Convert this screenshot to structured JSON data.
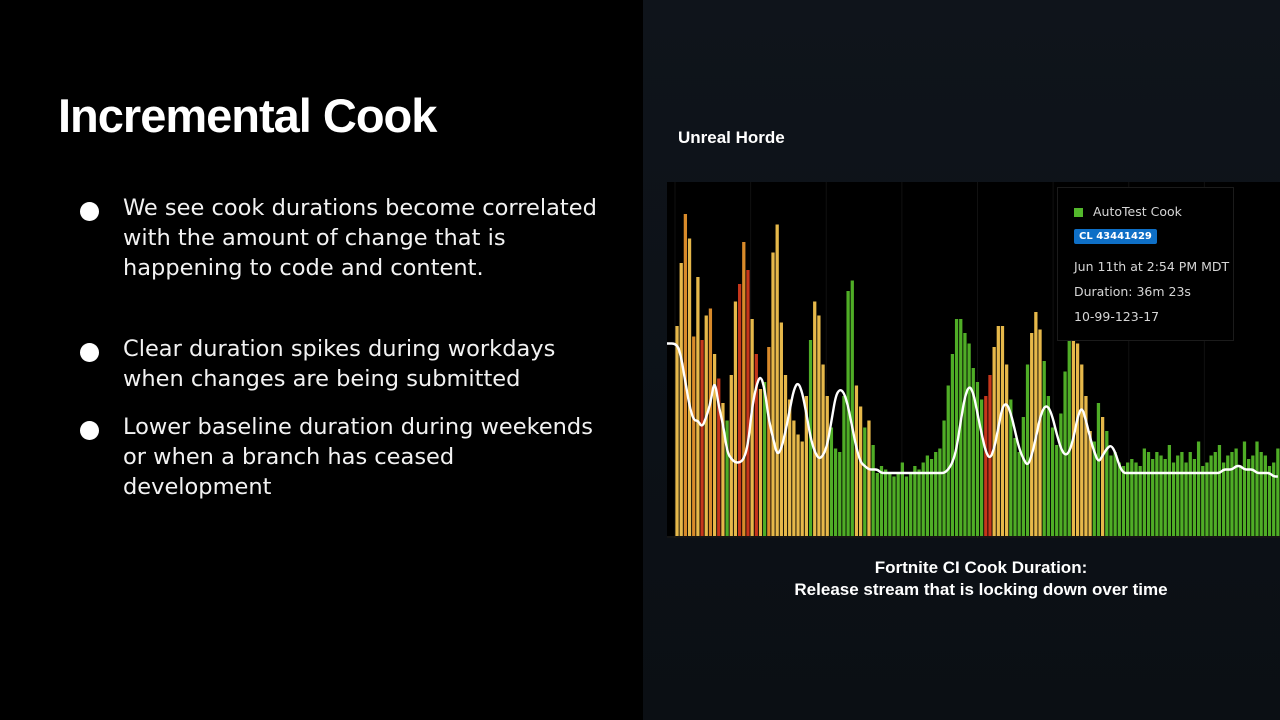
{
  "slide": {
    "title": "Incremental Cook",
    "bullets": [
      "We see cook durations become correlated with the amount of change that is happening to code and content.",
      "Clear duration spikes during workdays when changes are being submitted",
      "Lower baseline duration during weekends or when a branch has ceased development"
    ],
    "chart_heading": "Unreal Horde",
    "caption_line1": "Fortnite CI Cook Duration:",
    "caption_line2": "Release stream that is locking down over time"
  },
  "tooltip": {
    "series": "AutoTest Cook",
    "changelist": "CL 43441429",
    "time": "Jun 11th at 2:54 PM MDT",
    "duration": "Duration: 36m 23s",
    "build_id": "10-99-123-17"
  },
  "chart_data": {
    "type": "bar",
    "series": [
      {
        "name": "AutoTest Cook",
        "color": "#53b82c"
      }
    ],
    "color_scale": {
      "green": "#4fad26",
      "yellow": "#e6b84a",
      "orange": "#d88a2a",
      "red": "#c5361b"
    },
    "trend_color": "#ffffff",
    "ylim": [
      0,
      100
    ],
    "values": [
      60,
      78,
      92,
      85,
      57,
      74,
      56,
      63,
      65,
      52,
      45,
      38,
      33,
      46,
      67,
      72,
      84,
      76,
      62,
      52,
      42,
      44,
      54,
      81,
      89,
      61,
      46,
      39,
      33,
      29,
      27,
      40,
      56,
      67,
      63,
      49,
      40,
      31,
      25,
      24,
      40,
      70,
      73,
      43,
      37,
      31,
      33,
      26,
      18,
      20,
      19,
      18,
      17,
      18,
      21,
      17,
      18,
      20,
      19,
      21,
      23,
      22,
      24,
      25,
      33,
      43,
      52,
      62,
      62,
      58,
      55,
      48,
      44,
      39,
      40,
      46,
      54,
      60,
      60,
      49,
      39,
      28,
      24,
      34,
      49,
      58,
      64,
      59,
      50,
      40,
      31,
      26,
      35,
      47,
      58,
      59,
      55,
      49,
      40,
      30,
      27,
      38,
      34,
      30,
      23,
      24,
      21,
      20,
      21,
      22,
      21,
      20,
      25,
      24,
      22,
      24,
      23,
      22,
      26,
      21,
      23,
      24,
      21,
      24,
      22,
      27,
      20,
      21,
      23,
      24,
      26,
      21,
      23,
      24,
      25,
      20,
      27,
      22,
      23,
      27,
      24,
      23,
      20,
      21,
      25
    ],
    "colors": [
      "y",
      "y",
      "o",
      "y",
      "o",
      "y",
      "r",
      "y",
      "o",
      "y",
      "r",
      "y",
      "g",
      "y",
      "y",
      "r",
      "o",
      "r",
      "y",
      "r",
      "y",
      "g",
      "o",
      "y",
      "y",
      "y",
      "y",
      "y",
      "y",
      "y",
      "y",
      "y",
      "g",
      "y",
      "y",
      "y",
      "y",
      "g",
      "g",
      "g",
      "g",
      "g",
      "g",
      "y",
      "y",
      "g",
      "y",
      "g",
      "g",
      "g",
      "g",
      "g",
      "g",
      "g",
      "g",
      "g",
      "g",
      "g",
      "g",
      "g",
      "g",
      "g",
      "g",
      "g",
      "g",
      "g",
      "g",
      "g",
      "g",
      "g",
      "g",
      "g",
      "g",
      "g",
      "r",
      "r",
      "y",
      "y",
      "y",
      "y",
      "g",
      "g",
      "g",
      "g",
      "g",
      "y",
      "y",
      "y",
      "g",
      "g",
      "g",
      "g",
      "g",
      "g",
      "g",
      "y",
      "y",
      "y",
      "y",
      "y",
      "g",
      "g",
      "y",
      "g",
      "g",
      "g",
      "g",
      "g",
      "g",
      "g",
      "g",
      "g",
      "g",
      "g",
      "g",
      "g",
      "g",
      "g",
      "g",
      "g",
      "g",
      "g",
      "g",
      "g",
      "g",
      "g",
      "g",
      "g",
      "g",
      "g",
      "g",
      "g",
      "g",
      "g",
      "g",
      "g",
      "g",
      "g",
      "g",
      "g",
      "g",
      "g",
      "g",
      "g",
      "g"
    ],
    "trend": [
      55,
      51,
      44,
      37,
      33,
      33,
      31,
      34,
      38,
      45,
      37,
      32,
      24,
      22,
      21,
      21,
      22,
      26,
      37,
      43,
      46,
      42,
      33,
      28,
      23,
      25,
      30,
      36,
      42,
      44,
      41,
      35,
      28,
      24,
      22,
      23,
      26,
      33,
      40,
      42,
      41,
      37,
      31,
      25,
      21,
      20,
      19,
      19,
      19,
      18,
      18,
      18,
      18,
      18,
      18,
      18,
      18,
      18,
      18,
      18,
      18,
      18,
      18,
      18,
      18,
      19,
      21,
      25,
      33,
      40,
      43,
      41,
      35,
      29,
      24,
      22,
      25,
      31,
      37,
      38,
      35,
      30,
      25,
      22,
      20,
      23,
      28,
      34,
      37,
      37,
      34,
      29,
      25,
      23,
      24,
      28,
      34,
      37,
      33,
      28,
      24,
      21,
      23,
      25,
      26,
      24,
      20,
      18,
      18,
      18,
      18,
      18,
      18,
      18,
      18,
      18,
      18,
      18,
      18,
      18,
      18,
      18,
      18,
      18,
      18,
      18,
      18,
      18,
      18,
      18,
      18,
      19,
      19,
      19,
      20,
      20,
      19,
      19,
      19,
      18,
      18,
      18,
      18,
      17,
      17
    ]
  }
}
